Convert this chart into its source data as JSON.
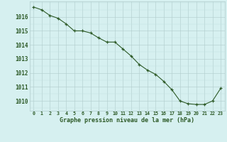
{
  "x": [
    0,
    1,
    2,
    3,
    4,
    5,
    6,
    7,
    8,
    9,
    10,
    11,
    12,
    13,
    14,
    15,
    16,
    17,
    18,
    19,
    20,
    21,
    22,
    23
  ],
  "y": [
    1016.7,
    1016.5,
    1016.1,
    1015.9,
    1015.5,
    1015.0,
    1015.0,
    1014.85,
    1014.5,
    1014.2,
    1014.2,
    1013.7,
    1013.2,
    1012.6,
    1012.2,
    1011.9,
    1011.4,
    1010.8,
    1010.0,
    1009.8,
    1009.75,
    1009.75,
    1010.0,
    1010.9
  ],
  "line_color": "#2d5a27",
  "marker": "+",
  "marker_color": "#2d5a27",
  "bg_color": "#d6f0f0",
  "grid_minor_color": "#c2e0e0",
  "grid_major_color": "#b0cccc",
  "xlabel": "Graphe pression niveau de la mer (hPa)",
  "xlabel_color": "#2d5a27",
  "tick_color": "#2d5a27",
  "ytick_labels": [
    "1016",
    "1015",
    "1014",
    "1013",
    "1012",
    "1011",
    "1010"
  ],
  "ytick_vals": [
    1016,
    1015,
    1014,
    1013,
    1012,
    1011,
    1010
  ],
  "xtick_labels": [
    "0",
    "1",
    "2",
    "3",
    "4",
    "5",
    "6",
    "7",
    "8",
    "9",
    "10",
    "11",
    "12",
    "13",
    "14",
    "15",
    "16",
    "17",
    "18",
    "19",
    "20",
    "21",
    "22",
    "23"
  ],
  "ylim": [
    1009.3,
    1017.1
  ],
  "xlim": [
    -0.5,
    23.5
  ]
}
